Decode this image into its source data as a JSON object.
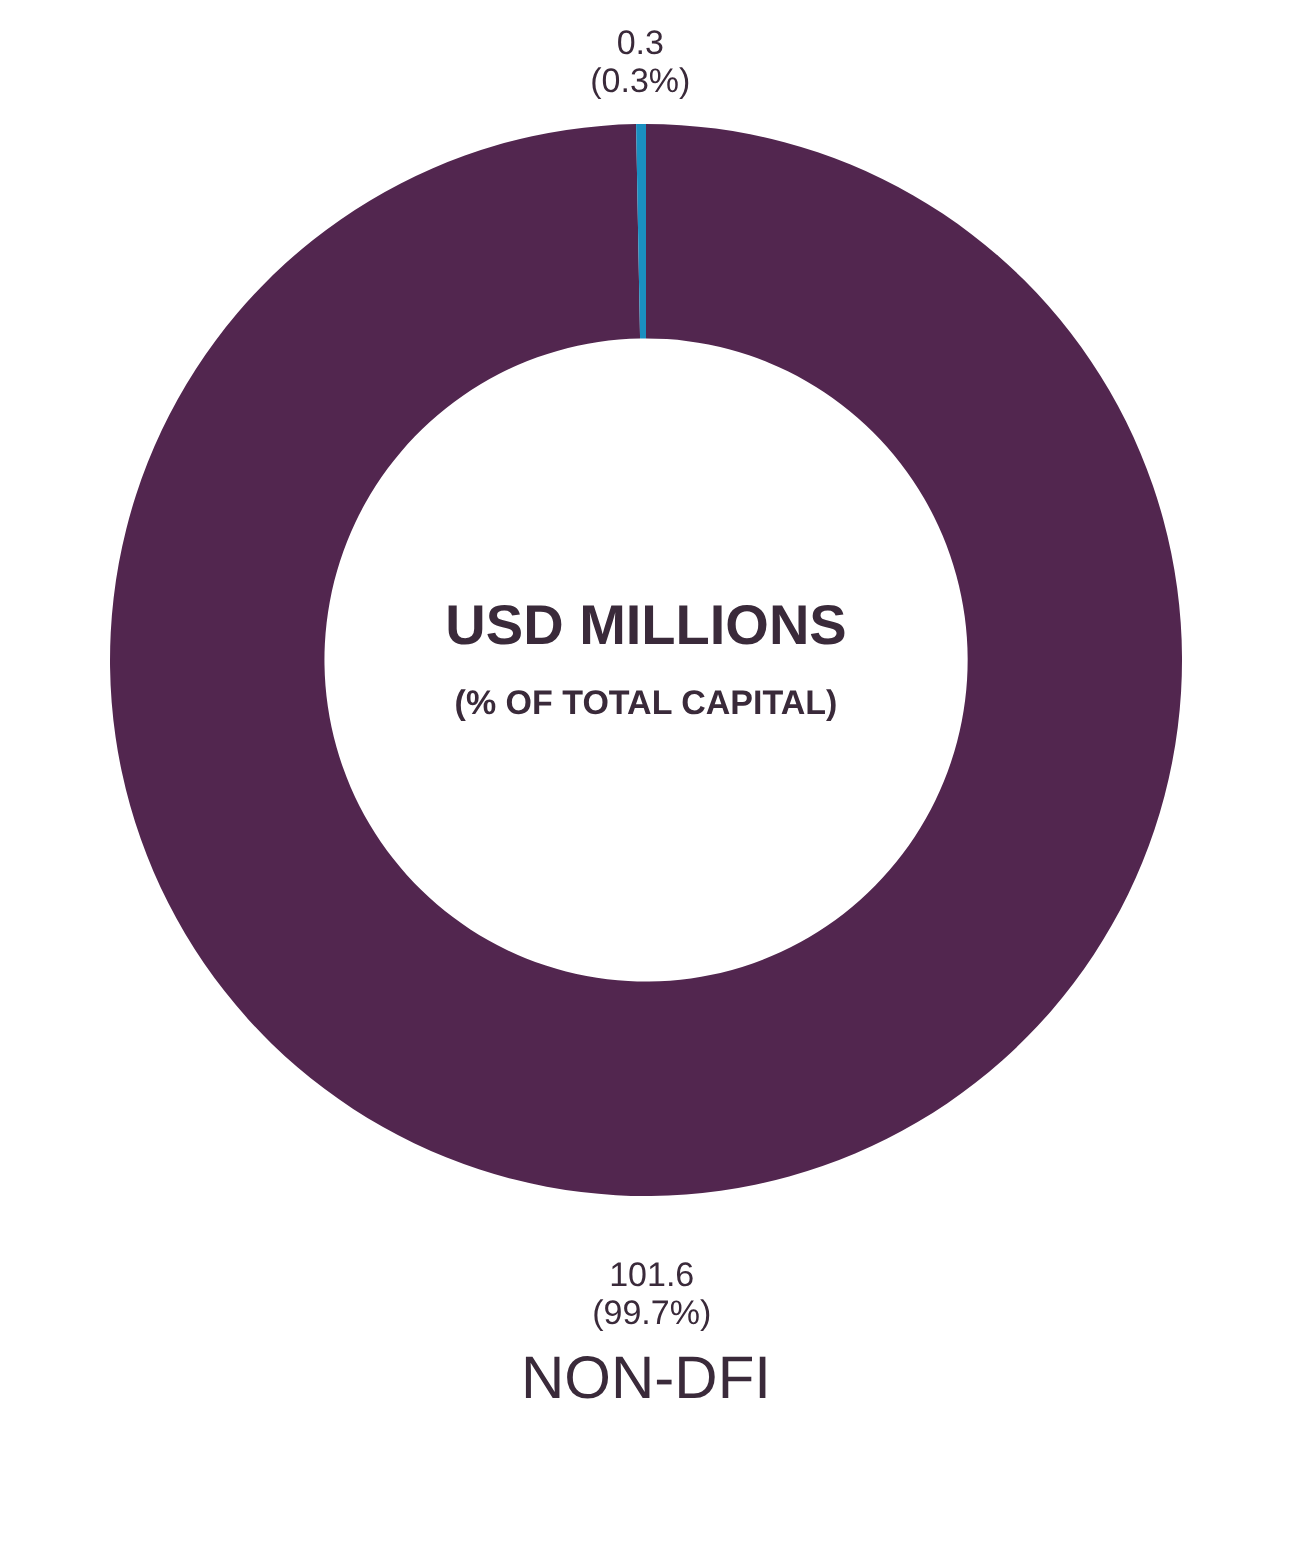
{
  "chart_data": {
    "type": "donut",
    "title": "NON-DFI",
    "annotations": [
      "USD MILLIONS",
      "(% OF TOTAL CAPITAL)"
    ],
    "categories": [
      null,
      null
    ],
    "values": [
      101.6,
      0.3
    ],
    "colors": [
      "#52264f",
      "#1a8fc0"
    ],
    "value_labels": [
      "101.6\n(99.7%)",
      "0.3\n(0.3%)"
    ]
  }
}
